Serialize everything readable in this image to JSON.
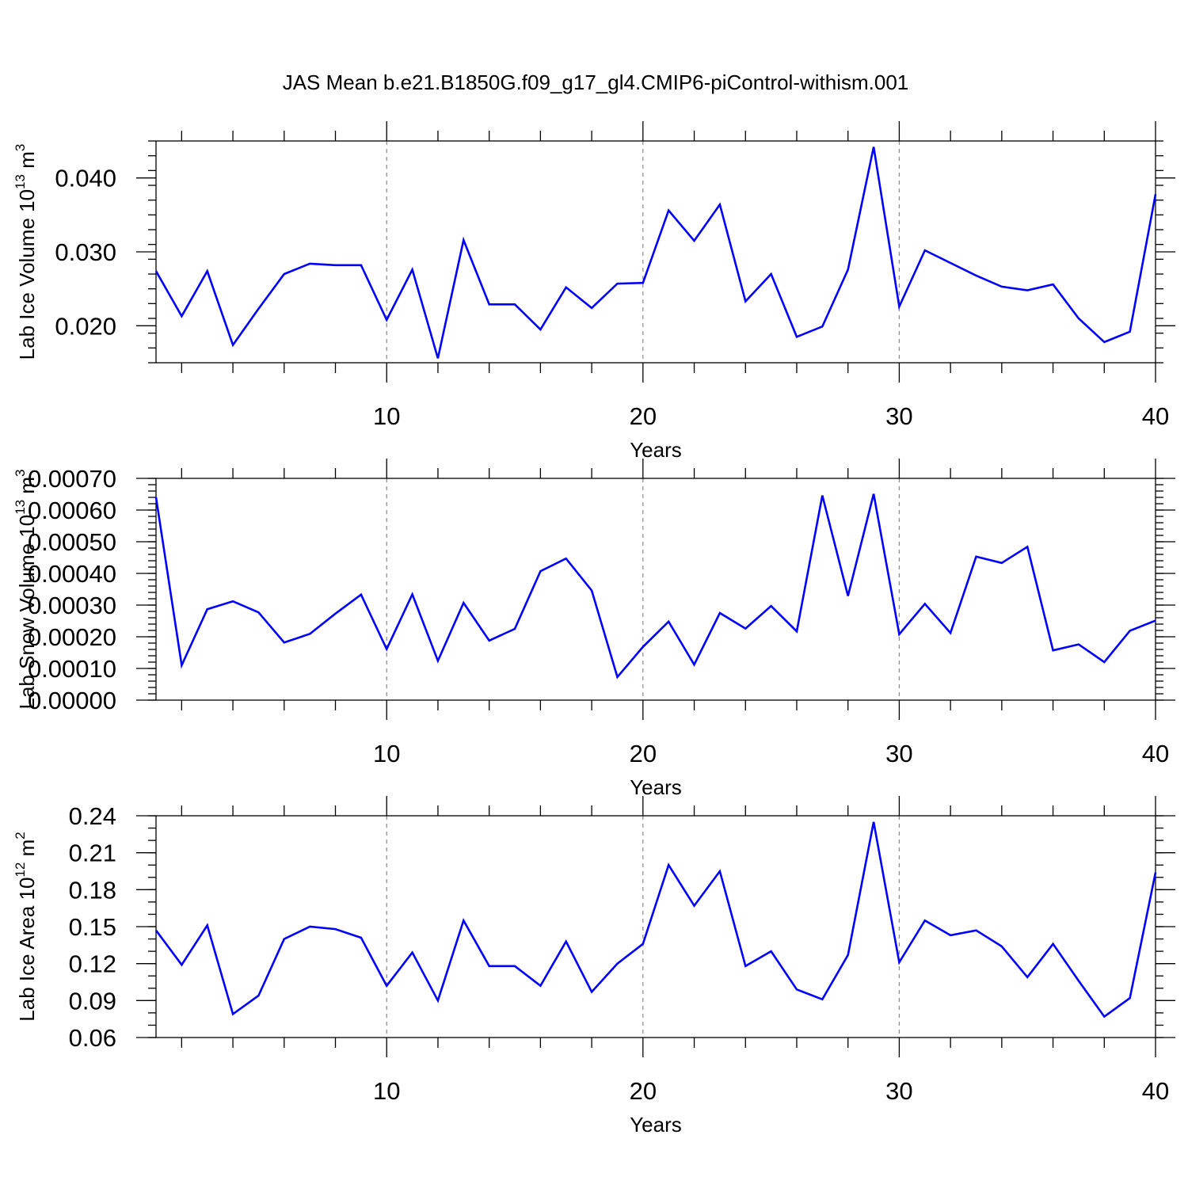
{
  "title": "JAS Mean b.e21.B1850G.f09_g17_gl4.CMIP6-piControl-withism.001",
  "colors": {
    "line": "#0000ff",
    "grid": "#888888",
    "axis": "#000000"
  },
  "chart_data": [
    {
      "type": "line",
      "ylabel_main": "Lab Ice Volume 10",
      "ylabel_exp": "13",
      "ylabel_unit": " m",
      "ylabel_unit_exp": "3",
      "xlabel": "Years",
      "xlim": [
        1,
        40
      ],
      "ylim": [
        0.015,
        0.045
      ],
      "x_ticks": [
        10,
        20,
        30,
        40
      ],
      "y_ticks": [
        0.02,
        0.03,
        0.04
      ],
      "y_tick_labels": [
        "0.020",
        "0.030",
        "0.040"
      ],
      "y_minor_step": 0.002,
      "x_gridlines": [
        10,
        20,
        30
      ],
      "series": [
        {
          "x": [
            1,
            2,
            3,
            4,
            5,
            6,
            7,
            8,
            9,
            10,
            11,
            12,
            13,
            14,
            15,
            16,
            17,
            18,
            19,
            20,
            21,
            22,
            23,
            24,
            25,
            26,
            27,
            28,
            29,
            30,
            31,
            32,
            33,
            34,
            35,
            36,
            37,
            38,
            39,
            40
          ],
          "values": [
            0.0274,
            0.0213,
            0.0274,
            0.0174,
            0.0223,
            0.027,
            0.0284,
            0.0282,
            0.0282,
            0.0208,
            0.0276,
            0.0156,
            0.0316,
            0.0229,
            0.0229,
            0.0195,
            0.0252,
            0.0224,
            0.0257,
            0.0258,
            0.0356,
            0.0315,
            0.0364,
            0.0233,
            0.027,
            0.0185,
            0.0199,
            0.0276,
            0.0442,
            0.0226,
            0.0302,
            0.0285,
            0.0268,
            0.0253,
            0.0248,
            0.0256,
            0.021,
            0.0178,
            0.0192,
            0.0378
          ]
        }
      ]
    },
    {
      "type": "line",
      "ylabel_main": "Lab Snow Volume 10",
      "ylabel_exp": "13",
      "ylabel_unit": " m",
      "ylabel_unit_exp": "3",
      "xlabel": "Years",
      "xlim": [
        1,
        40
      ],
      "ylim": [
        0.0,
        0.0007
      ],
      "x_ticks": [
        10,
        20,
        30,
        40
      ],
      "y_ticks": [
        0.0,
        0.0001,
        0.0002,
        0.0003,
        0.0004,
        0.0005,
        0.0006,
        0.0007
      ],
      "y_tick_labels": [
        "0.00000",
        "0.00010",
        "0.00020",
        "0.00030",
        "0.00040",
        "0.00050",
        "0.00060",
        "0.00070"
      ],
      "y_minor_step": 2e-05,
      "x_gridlines": [
        10,
        20,
        30
      ],
      "series": [
        {
          "x": [
            1,
            2,
            3,
            4,
            5,
            6,
            7,
            8,
            9,
            10,
            11,
            12,
            13,
            14,
            15,
            16,
            17,
            18,
            19,
            20,
            21,
            22,
            23,
            24,
            25,
            26,
            27,
            28,
            29,
            30,
            31,
            32,
            33,
            34,
            35,
            36,
            37,
            38,
            39,
            40
          ],
          "values": [
            0.00064,
            0.00011,
            0.000287,
            0.000312,
            0.000277,
            0.000182,
            0.000209,
            0.000273,
            0.000333,
            0.000161,
            0.000334,
            0.000124,
            0.000307,
            0.000188,
            0.000225,
            0.000407,
            0.000447,
            0.000346,
            7.3e-05,
            0.000168,
            0.000248,
            0.000112,
            0.000275,
            0.000226,
            0.000297,
            0.000217,
            0.000646,
            0.000329,
            0.000651,
            0.000208,
            0.000304,
            0.000212,
            0.000453,
            0.000433,
            0.000484,
            0.000157,
            0.000176,
            0.00012,
            0.000219,
            0.000251
          ]
        }
      ]
    },
    {
      "type": "line",
      "ylabel_main": "Lab Ice Area 10",
      "ylabel_exp": "12",
      "ylabel_unit": " m",
      "ylabel_unit_exp": "2",
      "xlabel": "Years",
      "xlim": [
        1,
        40
      ],
      "ylim": [
        0.06,
        0.24
      ],
      "x_ticks": [
        10,
        20,
        30,
        40
      ],
      "y_ticks": [
        0.06,
        0.09,
        0.12,
        0.15,
        0.18,
        0.21,
        0.24
      ],
      "y_tick_labels": [
        "0.06",
        "0.09",
        "0.12",
        "0.15",
        "0.18",
        "0.21",
        "0.24"
      ],
      "y_minor_step": 0.01,
      "x_gridlines": [
        10,
        20,
        30
      ],
      "series": [
        {
          "x": [
            1,
            2,
            3,
            4,
            5,
            6,
            7,
            8,
            9,
            10,
            11,
            12,
            13,
            14,
            15,
            16,
            17,
            18,
            19,
            20,
            21,
            22,
            23,
            24,
            25,
            26,
            27,
            28,
            29,
            30,
            31,
            32,
            33,
            34,
            35,
            36,
            37,
            38,
            39,
            40
          ],
          "values": [
            0.147,
            0.119,
            0.151,
            0.079,
            0.094,
            0.14,
            0.15,
            0.148,
            0.141,
            0.102,
            0.129,
            0.09,
            0.155,
            0.118,
            0.118,
            0.102,
            0.138,
            0.097,
            0.12,
            0.136,
            0.2,
            0.167,
            0.195,
            0.118,
            0.13,
            0.099,
            0.091,
            0.127,
            0.235,
            0.121,
            0.155,
            0.143,
            0.147,
            0.134,
            0.109,
            0.136,
            0.106,
            0.077,
            0.092,
            0.194
          ]
        }
      ]
    }
  ]
}
